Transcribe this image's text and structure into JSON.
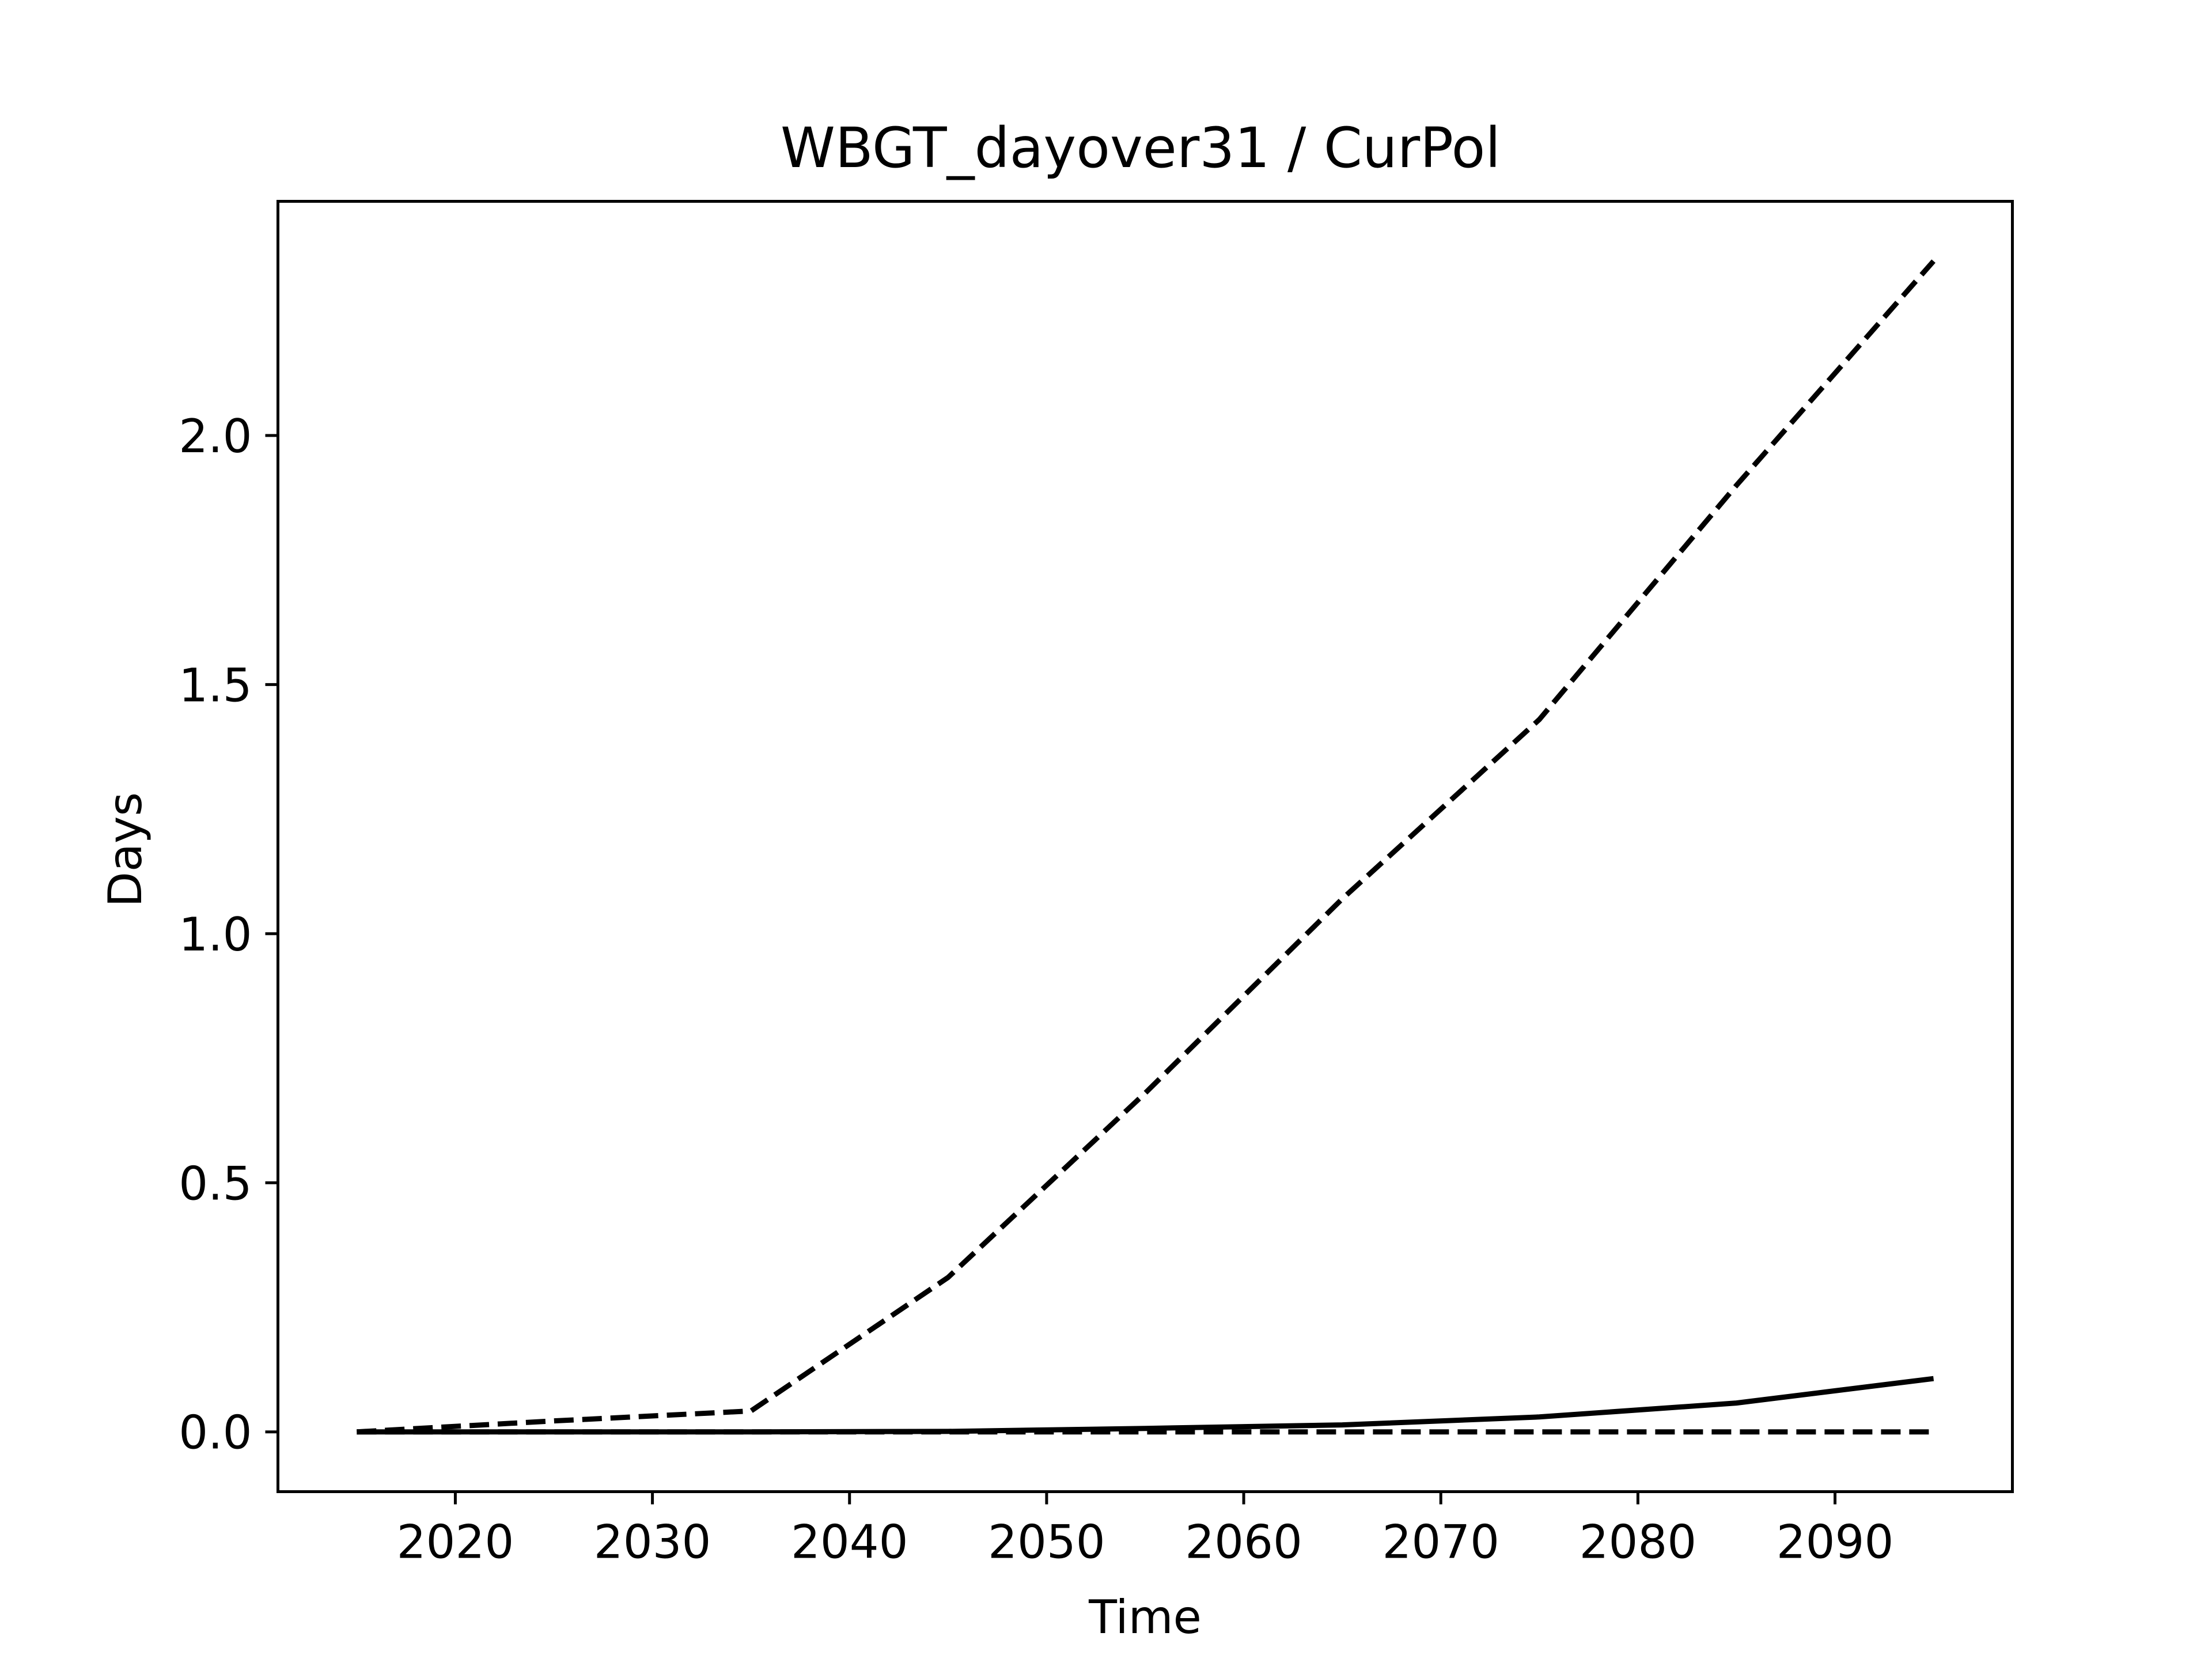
{
  "chart_data": {
    "type": "line",
    "title": "WBGT_dayover31 / CurPol",
    "xlabel": "Time",
    "ylabel": "Days",
    "xlim": [
      2011,
      2099
    ],
    "ylim": [
      -0.12,
      2.47
    ],
    "grid": false,
    "legend": "none",
    "x_ticks": [
      2020,
      2030,
      2040,
      2050,
      2060,
      2070,
      2080,
      2090
    ],
    "x_tick_labels": [
      "2020",
      "2030",
      "2040",
      "2050",
      "2060",
      "2070",
      "2080",
      "2090"
    ],
    "y_ticks": [
      0.0,
      0.5,
      1.0,
      1.5,
      2.0
    ],
    "y_tick_labels": [
      "0.0",
      "0.5",
      "1.0",
      "1.5",
      "2.0"
    ],
    "x": [
      2015,
      2025,
      2035,
      2045,
      2055,
      2065,
      2075,
      2085,
      2095
    ],
    "series": [
      {
        "values": [
          0.0,
          0.022,
          0.042,
          0.31,
          0.68,
          1.07,
          1.43,
          1.9,
          2.35
        ],
        "style": "dashed"
      },
      {
        "values": [
          0.0,
          0.0,
          0.0,
          0.001,
          0.007,
          0.014,
          0.03,
          0.058,
          0.107
        ],
        "style": "solid"
      },
      {
        "values": [
          0.0,
          0.0,
          0.0,
          0.0,
          0.0,
          0.0,
          0.0,
          0.0,
          0.0
        ],
        "style": "dashed"
      }
    ],
    "line_color": "#000000"
  }
}
